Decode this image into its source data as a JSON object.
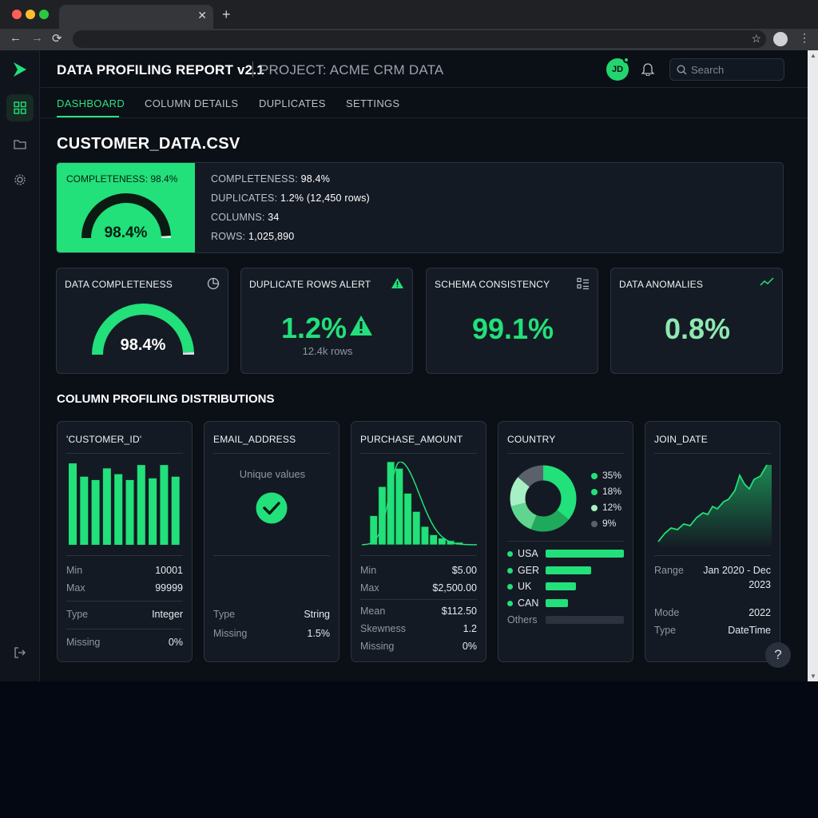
{
  "header": {
    "app_title": "DATA PROFILING REPORT v2.1",
    "project": "PROJECT: ACME CRM DATA",
    "avatar_initials": "JD",
    "search_placeholder": "Search"
  },
  "tabs": [
    {
      "label": "DASHBOARD"
    },
    {
      "label": "COLUMN DETAILS"
    },
    {
      "label": "DUPLICATES"
    },
    {
      "label": "SETTINGS"
    }
  ],
  "file_title": "CUSTOMER_DATA.CSV",
  "hero": {
    "label": "COMPLETENESS: 98.4%",
    "gauge_value": "98.4%",
    "gauge_fraction": 0.984,
    "stats": [
      {
        "key": "COMPLETENESS:",
        "value": "98.4%"
      },
      {
        "key": "DUPLICATES:",
        "value": "1.2% (12,450 rows)"
      },
      {
        "key": "COLUMNS:",
        "value": "34"
      },
      {
        "key": "ROWS:",
        "value": "1,025,890"
      }
    ]
  },
  "kpis": [
    {
      "title": "DATA COMPLETENESS",
      "value": "98.4%",
      "fraction": 0.984,
      "icon": "pie-chart-icon"
    },
    {
      "title": "DUPLICATE ROWS ALERT",
      "value": "1.2%",
      "sub": "12.4k rows",
      "icon": "warning-icon"
    },
    {
      "title": "SCHEMA CONSISTENCY",
      "value": "99.1%",
      "icon": "list-check-icon"
    },
    {
      "title": "DATA ANOMALIES",
      "value": "0.8%",
      "icon": "trend-icon"
    }
  ],
  "section_title": "COLUMN PROFILING DISTRIBUTIONS",
  "columns": {
    "customer_id": {
      "title": "'CUSTOMER_ID'",
      "bars": [
        0.98,
        0.82,
        0.78,
        0.92,
        0.85,
        0.78,
        0.96,
        0.8,
        0.96,
        0.82
      ],
      "min_label": "Min",
      "min": "10001",
      "max_label": "Max",
      "max": "99999",
      "type_label": "Type",
      "type": "Integer",
      "missing_label": "Missing",
      "missing": "0%"
    },
    "email": {
      "title": "EMAIL_ADDRESS",
      "unique_text": "Unique values",
      "type_label": "Type",
      "type": "String",
      "missing_label": "Missing",
      "missing": "1.5%"
    },
    "purchase": {
      "title": "PURCHASE_AMOUNT",
      "bars": [
        0.35,
        0.7,
        1.0,
        0.92,
        0.62,
        0.4,
        0.22,
        0.12,
        0.08,
        0.05,
        0.03
      ],
      "min_label": "Min",
      "min": "$5.00",
      "max_label": "Max",
      "max": "$2,500.00",
      "mean_label": "Mean",
      "mean": "$112.50",
      "skew_label": "Skewness",
      "skew": "1.2",
      "missing_label": "Missing",
      "missing": "0%"
    },
    "country": {
      "title": "COUNTRY",
      "donut_pcts": [
        "35%",
        "18%",
        "12%",
        "9%"
      ],
      "items": [
        {
          "label": "USA",
          "fraction": 1.0,
          "color": "#22e07a"
        },
        {
          "label": "GER",
          "fraction": 0.58,
          "color": "#22e07a"
        },
        {
          "label": "UK",
          "fraction": 0.39,
          "color": "#22e07a"
        },
        {
          "label": "CAN",
          "fraction": 0.29,
          "color": "#22e07a"
        },
        {
          "label": "Others",
          "fraction": 1.0,
          "color": "#2c333e"
        }
      ]
    },
    "join_date": {
      "title": "JOIN_DATE",
      "range_label": "Range",
      "range_line1": "Jan 2020 - Dec",
      "range_line2": "2023",
      "mode_label": "Mode",
      "mode": "2022",
      "type_label": "Type",
      "type": "DateTime"
    }
  },
  "colors": {
    "accent": "#22e07a",
    "background": "#0b0f16",
    "card": "#141a23"
  }
}
